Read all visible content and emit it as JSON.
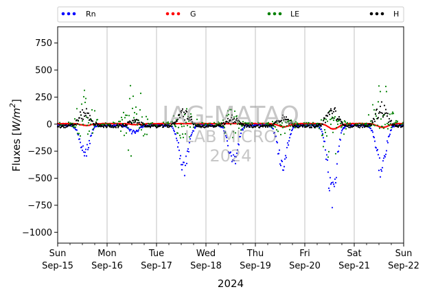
{
  "chart_data": {
    "type": "scatter",
    "title": "",
    "xlabel": "2024",
    "ylabel": "Fluxes [W/m²]",
    "ylabel_parts": {
      "prefix": "Fluxes [",
      "unit_main": "W/m",
      "unit_exp": "2",
      "suffix": "]"
    },
    "ylim": [
      -1100,
      900
    ],
    "yticks": [
      -1000,
      -750,
      -500,
      -250,
      0,
      250,
      500,
      750
    ],
    "ytick_labels": [
      "−1000",
      "−750",
      "−500",
      "−250",
      "0",
      "250",
      "500",
      "750"
    ],
    "xlim": [
      "2024-09-15",
      "2024-09-22"
    ],
    "xticks": [
      {
        "day": "Sun",
        "date": "Sep-15"
      },
      {
        "day": "Mon",
        "date": "Sep-16"
      },
      {
        "day": "Tue",
        "date": "Sep-17"
      },
      {
        "day": "Wed",
        "date": "Sep-18"
      },
      {
        "day": "Thu",
        "date": "Sep-19"
      },
      {
        "day": "Fri",
        "date": "Sep-20"
      },
      {
        "day": "Sat",
        "date": "Sep-21"
      },
      {
        "day": "Sun",
        "date": "Sep-22"
      }
    ],
    "grid": "vertical",
    "legend_placement": "top",
    "series": [
      {
        "name": "Rn",
        "color": "#0000ff",
        "daily_min": [
          -285,
          -80,
          -440,
          -370,
          -385,
          -690,
          -440
        ],
        "night": -10
      },
      {
        "name": "G",
        "color": "#ff0000",
        "daily_min": [
          -12,
          -5,
          5,
          5,
          -25,
          -45,
          -30
        ],
        "night": 5
      },
      {
        "name": "LE",
        "color": "#008000",
        "daily_max": [
          320,
          420,
          210,
          150,
          90,
          140,
          450
        ],
        "daily_min": [
          -150,
          -430,
          -200,
          -130,
          -100,
          -500,
          -120
        ]
      },
      {
        "name": "H",
        "color": "#000000",
        "daily_max": [
          160,
          60,
          160,
          100,
          110,
          180,
          220
        ],
        "night": -20
      }
    ]
  },
  "watermark": {
    "line1": "IAG-MATAO",
    "line2": "LAB MICRO",
    "line3": "2024"
  }
}
